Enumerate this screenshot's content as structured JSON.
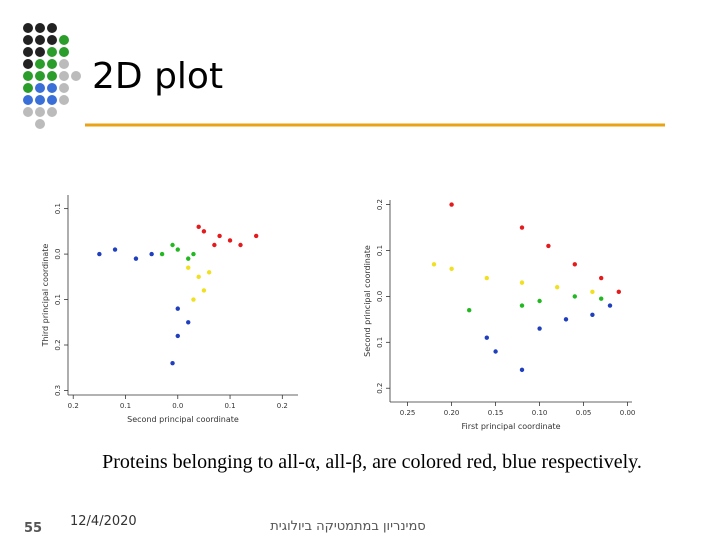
{
  "title": "2D plot",
  "caption": "Proteins belonging to all-α, all-β, are colored red, blue respectively.",
  "footer": {
    "slide_number": "55",
    "date": "12/4/2020",
    "course": "סמינריון במתמטיקה ביולוגית"
  },
  "chart_data": [
    {
      "type": "scatter",
      "x_label": "Second principal coordinate",
      "y_label": "Third principal coordinate",
      "xlim": [
        -0.21,
        0.23
      ],
      "ylim": [
        -0.31,
        0.13
      ],
      "xticks": [
        {
          "value": -0.2,
          "label": "0.2"
        },
        {
          "value": -0.1,
          "label": "0.1"
        },
        {
          "value": 0,
          "label": "0.0"
        },
        0.1,
        0.2
      ],
      "yticks": [
        0.1,
        {
          "value": 0,
          "label": "0.0"
        },
        {
          "value": -0.1,
          "label": "0.1"
        },
        {
          "value": -0.2,
          "label": "0.2"
        },
        {
          "value": -0.3,
          "label": "0.3"
        }
      ],
      "series": [
        {
          "color": "#e41a1c",
          "x": [
            0.05,
            0.08,
            0.1,
            0.12,
            0.15,
            0.04,
            0.07
          ],
          "values": [
            0.05,
            0.04,
            0.03,
            0.02,
            0.04,
            0.06,
            0.02
          ]
        },
        {
          "color": "#1f3fbf",
          "x": [
            -0.15,
            -0.12,
            -0.08,
            -0.05,
            0.0,
            0.0,
            -0.01,
            0.02
          ],
          "values": [
            0.0,
            0.01,
            -0.01,
            0.0,
            -0.12,
            -0.18,
            -0.24,
            -0.15
          ]
        },
        {
          "color": "#22b822",
          "x": [
            -0.03,
            0.0,
            0.02,
            -0.01,
            0.03
          ],
          "values": [
            0.0,
            0.01,
            -0.01,
            0.02,
            0.0
          ]
        },
        {
          "color": "#f0e020",
          "x": [
            0.02,
            0.04,
            0.05,
            0.03,
            0.06
          ],
          "values": [
            -0.03,
            -0.05,
            -0.08,
            -0.1,
            -0.04
          ]
        }
      ]
    },
    {
      "type": "scatter",
      "x_label": "First principal coordinate",
      "y_label": "Second principal coordinate",
      "xlim": [
        -0.27,
        0.005
      ],
      "ylim": [
        -0.23,
        0.21
      ],
      "xticks": [
        {
          "value": -0.25,
          "label": "0.25"
        },
        {
          "value": -0.2,
          "label": "0.20"
        },
        {
          "value": -0.15,
          "label": "0.15"
        },
        {
          "value": -0.1,
          "label": "0.10"
        },
        {
          "value": -0.05,
          "label": "0.05"
        },
        {
          "value": 0,
          "label": "0.00"
        }
      ],
      "yticks": [
        {
          "value": 0.2,
          "label": "0.2"
        },
        {
          "value": 0.1,
          "label": "0.1"
        },
        {
          "value": 0,
          "label": "0.0"
        },
        {
          "value": -0.1,
          "label": "0.1"
        },
        {
          "value": -0.2,
          "label": "0.2"
        }
      ],
      "series": [
        {
          "color": "#e41a1c",
          "x": [
            -0.12,
            -0.09,
            -0.06,
            -0.03,
            -0.01,
            -0.2
          ],
          "values": [
            0.15,
            0.11,
            0.07,
            0.04,
            0.01,
            0.2
          ]
        },
        {
          "color": "#f0e020",
          "x": [
            -0.12,
            -0.08,
            -0.04,
            -0.2,
            -0.22,
            -0.16
          ],
          "values": [
            0.03,
            0.02,
            0.01,
            0.06,
            0.07,
            0.04
          ]
        },
        {
          "color": "#22b822",
          "x": [
            -0.1,
            -0.06,
            -0.03,
            -0.12,
            -0.18
          ],
          "values": [
            -0.01,
            0.0,
            -0.005,
            -0.02,
            -0.03
          ]
        },
        {
          "color": "#1f3fbf",
          "x": [
            -0.1,
            -0.07,
            -0.04,
            -0.02,
            -0.15,
            -0.12,
            -0.16
          ],
          "values": [
            -0.07,
            -0.05,
            -0.04,
            -0.02,
            -0.12,
            -0.16,
            -0.09
          ]
        }
      ]
    }
  ]
}
